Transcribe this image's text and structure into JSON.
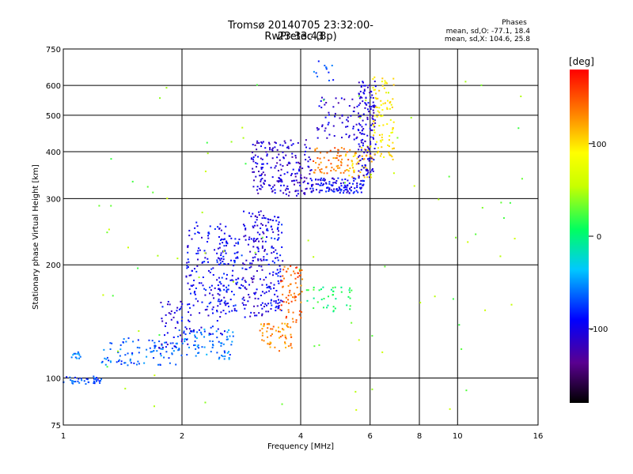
{
  "chart_data": {
    "type": "scatter",
    "title": "Tromsø 20140705 23:32:00-23:33:43",
    "subtitle": "RwPretec (8p)",
    "xlabel": "Frequency [MHz]",
    "ylabel": "Stationary phase Virtual Height [km]",
    "x_scale": "log",
    "y_scale": "log",
    "xlim": [
      1,
      16
    ],
    "ylim": [
      75,
      750
    ],
    "x_ticks": [
      1,
      2,
      4,
      6,
      8,
      10,
      16
    ],
    "y_ticks": [
      75,
      100,
      200,
      300,
      400,
      500,
      600,
      750
    ],
    "x_tick_labels": [
      "1",
      "2",
      "4",
      "6",
      "8",
      "10",
      "16"
    ],
    "y_tick_labels": [
      "75",
      "100",
      "200",
      "300",
      "400",
      "500",
      "600",
      "750"
    ],
    "grid": true,
    "stats": {
      "title": "Phases",
      "line_o": "mean, sd,O: -77.1, 18.4",
      "line_x": "mean, sd,X: 104.6, 25.8"
    },
    "colorbar": {
      "label": "[deg]",
      "range": [
        -180,
        180
      ],
      "ticks": [
        100,
        0,
        -100
      ],
      "tick_labels": [
        "100",
        "0",
        "-100"
      ]
    },
    "series": [
      {
        "x": [
          1.0,
          1.25
        ],
        "y_range": [
          96,
          101
        ],
        "phase": -70,
        "count": 40
      },
      {
        "x": [
          1.05,
          1.12
        ],
        "y_range": [
          112,
          118
        ],
        "phase": -60,
        "count": 12
      },
      {
        "x": [
          1.25,
          1.95
        ],
        "y_range": [
          108,
          128
        ],
        "phase": -65,
        "count": 90
      },
      {
        "x": [
          1.95,
          2.7
        ],
        "y_range": [
          112,
          135
        ],
        "phase": -60,
        "count": 80
      },
      {
        "x": [
          1.75,
          2.1
        ],
        "y_range": [
          120,
          165
        ],
        "phase": -100,
        "count": 50
      },
      {
        "x": [
          2.05,
          2.6
        ],
        "y_range": [
          130,
          260
        ],
        "phase": -95,
        "count": 160
      },
      {
        "x": [
          2.45,
          2.85
        ],
        "y_range": [
          150,
          240
        ],
        "phase": -90,
        "count": 100
      },
      {
        "x": [
          2.85,
          3.25
        ],
        "y_range": [
          145,
          280
        ],
        "phase": -105,
        "count": 130
      },
      {
        "x": [
          3.25,
          3.6
        ],
        "y_range": [
          150,
          270
        ],
        "phase": -95,
        "count": 110
      },
      {
        "x": [
          3.15,
          3.8
        ],
        "y_range": [
          118,
          140
        ],
        "phase": 130,
        "count": 60
      },
      {
        "x": [
          3.55,
          4.05
        ],
        "y_range": [
          140,
          200
        ],
        "phase": 145,
        "count": 70
      },
      {
        "x": [
          4.0,
          5.4
        ],
        "y_range": [
          150,
          175
        ],
        "phase": 10,
        "count": 40
      },
      {
        "x": [
          3.0,
          4.3
        ],
        "y_range": [
          305,
          430
        ],
        "phase": -110,
        "count": 200
      },
      {
        "x": [
          4.2,
          5.8
        ],
        "y_range": [
          310,
          340
        ],
        "phase": -95,
        "count": 120
      },
      {
        "x": [
          4.3,
          5.3
        ],
        "y_range": [
          350,
          410
        ],
        "phase": 140,
        "count": 60
      },
      {
        "x": [
          5.2,
          6.1
        ],
        "y_range": [
          340,
          420
        ],
        "phase": 110,
        "count": 50
      },
      {
        "x": [
          5.6,
          6.2
        ],
        "y_range": [
          340,
          620
        ],
        "phase": -105,
        "count": 140
      },
      {
        "x": [
          6.1,
          6.9
        ],
        "y_range": [
          380,
          640
        ],
        "phase": 95,
        "count": 90
      },
      {
        "x": [
          4.4,
          5.7
        ],
        "y_range": [
          430,
          560
        ],
        "phase": -110,
        "count": 60
      },
      {
        "x": [
          4.3,
          5.0
        ],
        "y_range": [
          600,
          700
        ],
        "phase": -70,
        "count": 12
      },
      {
        "x": [
          1.2,
          15
        ],
        "y_range": [
          78,
          700
        ],
        "phase": 40,
        "count": 90
      }
    ]
  }
}
